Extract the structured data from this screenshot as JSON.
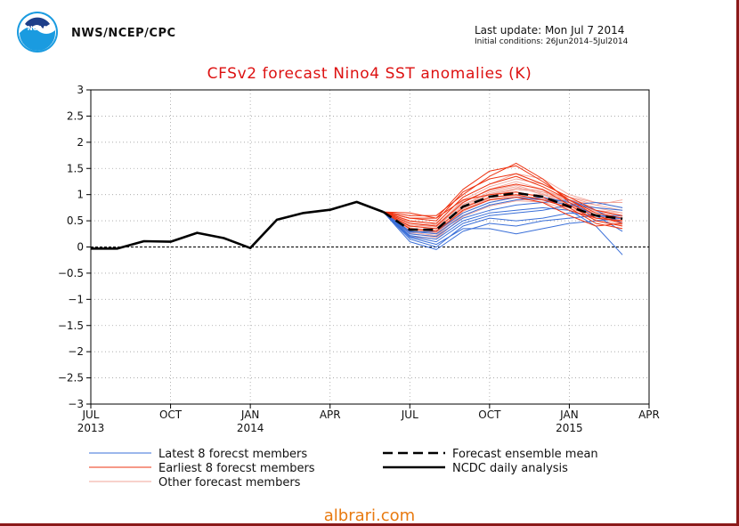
{
  "header": {
    "org": "NWS/NCEP/CPC",
    "logo_text": "NOAA",
    "last_update": "Last update: Mon Jul  7 2014",
    "initial_conditions": "Initial conditions: 26Jun2014–5Jul2014"
  },
  "footer": {
    "watermark": "albrari.com"
  },
  "colors": {
    "title": "#dd1111",
    "latest": "#3a6fd8",
    "earliest": "#ee3311",
    "other": "#f2a59a",
    "mean": "#000000",
    "analysis": "#000000",
    "frame": "#8b1a1a",
    "watermark": "#e87a10"
  },
  "chart_data": {
    "type": "line",
    "title": "CFSv2 forecast Nino4 SST anomalies (K)",
    "xlabel": "",
    "ylabel": "",
    "ylim": [
      -3,
      3
    ],
    "y_ticks": [
      "3",
      "2.5",
      "2",
      "1.5",
      "1",
      "0.5",
      "0",
      "−0.5",
      "−1",
      "−1.5",
      "−2",
      "−2.5",
      "−3"
    ],
    "y_tick_values": [
      3,
      2.5,
      2,
      1.5,
      1,
      0.5,
      0,
      -0.5,
      -1,
      -1.5,
      -2,
      -2.5,
      -3
    ],
    "x_axis": {
      "start": "2013-07",
      "end": "2015-04",
      "ticks": [
        {
          "label": "JUL",
          "year": "2013",
          "date": "2013-07"
        },
        {
          "label": "OCT",
          "year": "",
          "date": "2013-10"
        },
        {
          "label": "JAN",
          "year": "2014",
          "date": "2014-01"
        },
        {
          "label": "APR",
          "year": "",
          "date": "2014-04"
        },
        {
          "label": "JUL",
          "year": "",
          "date": "2014-07"
        },
        {
          "label": "OCT",
          "year": "",
          "date": "2014-10"
        },
        {
          "label": "JAN",
          "year": "2015",
          "date": "2015-01"
        },
        {
          "label": "APR",
          "year": "",
          "date": "2015-04"
        }
      ]
    },
    "zero_line": true,
    "series": [
      {
        "name": "NCDC daily analysis",
        "style": "solid-thick",
        "points": [
          [
            "2013-07-01",
            -0.03
          ],
          [
            "2013-08-01",
            -0.03
          ],
          [
            "2013-09-01",
            0.11
          ],
          [
            "2013-10-01",
            0.1
          ],
          [
            "2013-11-01",
            0.27
          ],
          [
            "2013-12-01",
            0.17
          ],
          [
            "2014-01-01",
            -0.02
          ],
          [
            "2014-02-01",
            0.52
          ],
          [
            "2014-03-01",
            0.65
          ],
          [
            "2014-04-01",
            0.71
          ],
          [
            "2014-05-01",
            0.86
          ],
          [
            "2014-06-01",
            0.67
          ]
        ]
      },
      {
        "name": "Forecast ensemble mean",
        "style": "dashed-thick",
        "points": [
          [
            "2014-06-01",
            0.67
          ],
          [
            "2014-07-01",
            0.33
          ],
          [
            "2014-08-01",
            0.33
          ],
          [
            "2014-09-01",
            0.77
          ],
          [
            "2014-10-01",
            0.96
          ],
          [
            "2014-11-01",
            1.03
          ],
          [
            "2014-12-01",
            0.96
          ],
          [
            "2015-01-01",
            0.77
          ],
          [
            "2015-02-01",
            0.6
          ],
          [
            "2015-03-01",
            0.54
          ]
        ]
      }
    ],
    "ensemble": {
      "x": [
        "2014-06-01",
        "2014-07-01",
        "2014-08-01",
        "2014-09-01",
        "2014-10-01",
        "2014-11-01",
        "2014-12-01",
        "2015-01-01",
        "2015-02-01",
        "2015-03-01"
      ],
      "latest": [
        [
          0.67,
          0.15,
          0.0,
          0.4,
          0.55,
          0.5,
          0.55,
          0.65,
          0.6,
          0.55
        ],
        [
          0.67,
          0.2,
          0.1,
          0.45,
          0.6,
          0.65,
          0.7,
          0.8,
          0.75,
          0.7
        ],
        [
          0.67,
          0.1,
          -0.05,
          0.3,
          0.45,
          0.4,
          0.5,
          0.55,
          0.6,
          0.6
        ],
        [
          0.67,
          0.25,
          0.2,
          0.55,
          0.7,
          0.8,
          0.85,
          0.9,
          0.7,
          0.45
        ],
        [
          0.67,
          0.3,
          0.25,
          0.6,
          0.8,
          0.9,
          0.95,
          0.85,
          0.6,
          0.3
        ],
        [
          0.67,
          0.18,
          0.05,
          0.35,
          0.35,
          0.25,
          0.35,
          0.45,
          0.5,
          0.55
        ],
        [
          0.67,
          0.22,
          0.15,
          0.5,
          0.65,
          0.7,
          0.75,
          0.7,
          0.4,
          -0.15
        ],
        [
          0.67,
          0.28,
          0.3,
          0.65,
          0.85,
          0.95,
          0.9,
          0.8,
          0.85,
          0.75
        ]
      ],
      "earliest": [
        [
          0.67,
          0.55,
          0.55,
          1.1,
          1.45,
          1.55,
          1.25,
          0.9,
          0.65,
          0.55
        ],
        [
          0.67,
          0.6,
          0.6,
          1.0,
          1.35,
          1.6,
          1.3,
          0.85,
          0.55,
          0.5
        ],
        [
          0.67,
          0.5,
          0.45,
          0.95,
          1.2,
          1.35,
          1.15,
          0.9,
          0.6,
          0.45
        ],
        [
          0.67,
          0.45,
          0.4,
          0.85,
          1.1,
          1.2,
          1.1,
          0.8,
          0.5,
          0.4
        ],
        [
          0.67,
          0.65,
          0.55,
          0.9,
          1.0,
          1.05,
          0.95,
          0.7,
          0.55,
          0.5
        ],
        [
          0.67,
          0.4,
          0.35,
          0.75,
          0.95,
          1.0,
          0.9,
          0.75,
          0.45,
          0.35
        ],
        [
          0.67,
          0.35,
          0.3,
          0.7,
          0.9,
          0.95,
          0.85,
          0.6,
          0.4,
          0.45
        ],
        [
          0.67,
          0.55,
          0.5,
          1.05,
          1.3,
          1.4,
          1.2,
          0.95,
          0.7,
          0.6
        ]
      ],
      "other": [
        [
          0.67,
          0.3,
          0.25,
          0.7,
          0.95,
          1.1,
          1.05,
          0.85,
          0.7,
          0.6
        ],
        [
          0.67,
          0.35,
          0.3,
          0.8,
          1.05,
          1.15,
          1.0,
          0.8,
          0.65,
          0.55
        ],
        [
          0.67,
          0.25,
          0.2,
          0.65,
          0.85,
          0.95,
          0.95,
          0.8,
          0.6,
          0.5
        ],
        [
          0.67,
          0.4,
          0.35,
          0.85,
          1.1,
          1.25,
          1.1,
          0.9,
          0.75,
          0.65
        ],
        [
          0.67,
          0.2,
          0.15,
          0.6,
          0.8,
          0.9,
          0.9,
          0.75,
          0.55,
          0.45
        ],
        [
          0.67,
          0.45,
          0.4,
          0.9,
          1.15,
          1.3,
          1.2,
          0.95,
          0.8,
          0.7
        ],
        [
          0.67,
          0.32,
          0.28,
          0.75,
          1.0,
          1.05,
          0.95,
          0.85,
          0.7,
          0.65
        ],
        [
          0.67,
          0.38,
          0.45,
          0.95,
          1.2,
          1.4,
          1.3,
          1.0,
          0.85,
          0.75
        ],
        [
          0.67,
          0.28,
          0.22,
          0.68,
          0.9,
          1.0,
          1.0,
          0.9,
          0.8,
          0.9
        ],
        [
          0.67,
          0.42,
          0.38,
          0.82,
          1.0,
          1.1,
          1.05,
          0.95,
          0.85,
          0.85
        ],
        [
          0.67,
          0.34,
          0.26,
          0.72,
          0.92,
          0.98,
          0.92,
          0.78,
          0.62,
          0.52
        ],
        [
          0.67,
          0.48,
          0.42,
          0.88,
          1.08,
          1.18,
          1.02,
          0.82,
          0.6,
          0.48
        ],
        [
          0.67,
          0.26,
          0.18,
          0.58,
          0.78,
          0.88,
          0.86,
          0.7,
          0.52,
          0.42
        ],
        [
          0.67,
          0.36,
          0.32,
          0.78,
          1.02,
          1.12,
          1.08,
          0.88,
          0.68,
          0.58
        ]
      ]
    },
    "legend": {
      "placement": "bottom",
      "entries": [
        {
          "key": "latest",
          "label": "Latest 8 forecst members",
          "style": "thin"
        },
        {
          "key": "earliest",
          "label": "Earliest 8 forecst members",
          "style": "thin"
        },
        {
          "key": "other",
          "label": "Other forecast members",
          "style": "thin"
        },
        {
          "key": "mean",
          "label": "Forecast ensemble mean",
          "style": "dashed"
        },
        {
          "key": "analysis",
          "label": "NCDC daily analysis",
          "style": "solid"
        }
      ]
    }
  }
}
